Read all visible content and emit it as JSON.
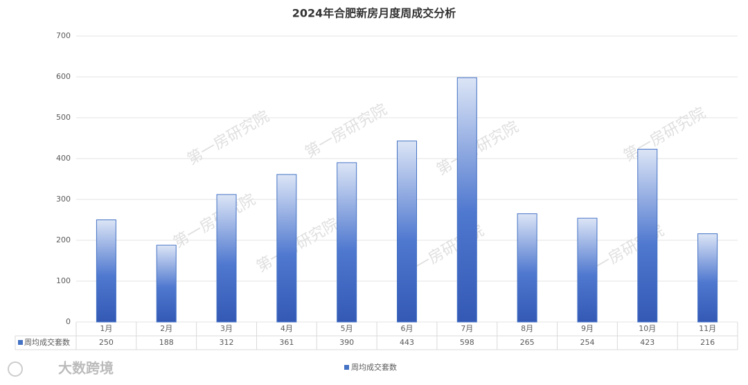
{
  "chart_data": {
    "type": "bar",
    "title": "2024年合肥新房月度周成交分析",
    "categories": [
      "1月",
      "2月",
      "3月",
      "4月",
      "5月",
      "6月",
      "7月",
      "8月",
      "9月",
      "10月",
      "11月"
    ],
    "series": [
      {
        "name": "周均成交套数",
        "color": "#4472c4",
        "values": [
          250,
          188,
          312,
          361,
          390,
          443,
          598,
          265,
          254,
          423,
          216
        ]
      }
    ],
    "ylim": [
      0,
      700
    ],
    "yticks": [
      0,
      100,
      200,
      300,
      400,
      500,
      600,
      700
    ],
    "grid": true,
    "legend": "bottom",
    "data_table": true
  },
  "watermark": "第一房研究院",
  "logo": "大数跨境"
}
